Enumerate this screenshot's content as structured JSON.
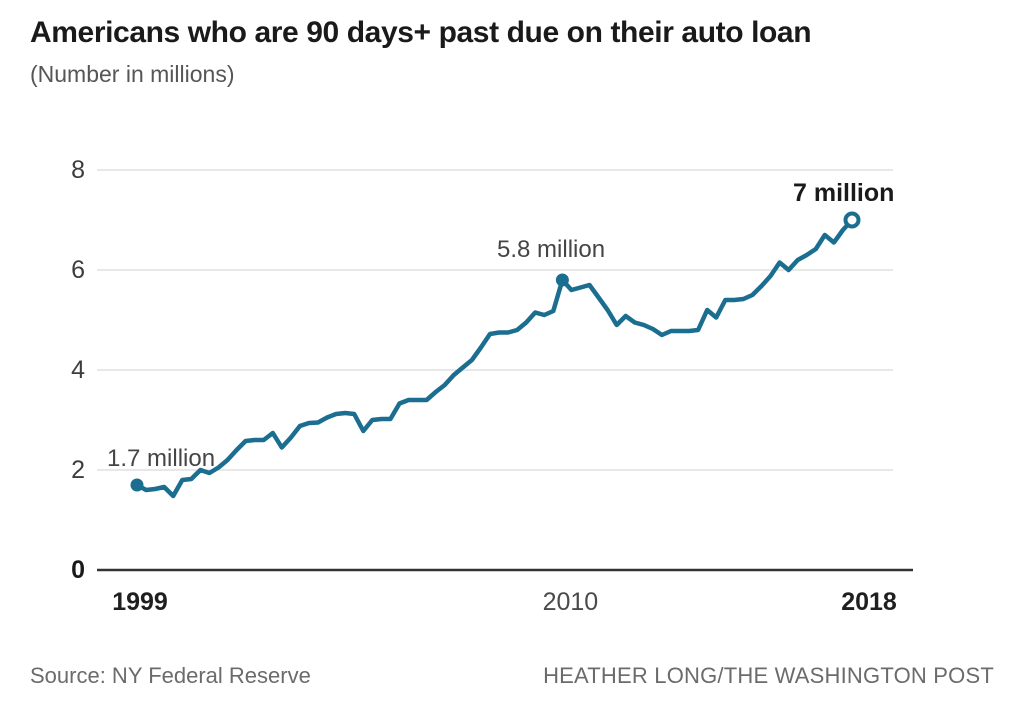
{
  "header": {
    "title": "Americans who are 90 days+ past due on their auto loan",
    "subtitle": "(Number in millions)"
  },
  "footer": {
    "source": "Source: NY Federal Reserve",
    "credit": "HEATHER LONG/THE WASHINGTON POST"
  },
  "colors": {
    "line": "#1b6e8f",
    "grid": "#d9d9d9",
    "baseline": "#333333",
    "tick_text": "#3d3d3d",
    "tick_text_bold": "#1a1a1a",
    "background": "#ffffff"
  },
  "chart_data": {
    "type": "line",
    "title": "Americans who are 90 days+ past due on their auto loan",
    "subtitle": "(Number in millions)",
    "x_start_year": 1999,
    "x_end_year": 2018,
    "frequency": "quarterly",
    "xlabel": "",
    "ylabel": "Number in millions",
    "ylim": [
      0,
      8
    ],
    "y_ticks": [
      0,
      2,
      4,
      6,
      8
    ],
    "grid": "horizontal",
    "legend": "none",
    "x_ticks": [
      {
        "label": "1999",
        "index": 0,
        "bold": true
      },
      {
        "label": "2010",
        "index": 47,
        "bold": false
      },
      {
        "label": "2018",
        "index": 79,
        "bold": true
      }
    ],
    "values": [
      1.7,
      1.6,
      1.62,
      1.66,
      1.48,
      1.8,
      1.82,
      2.0,
      1.94,
      2.05,
      2.2,
      2.4,
      2.58,
      2.6,
      2.6,
      2.74,
      2.45,
      2.65,
      2.88,
      2.94,
      2.95,
      3.05,
      3.12,
      3.14,
      3.12,
      2.78,
      3.0,
      3.02,
      3.02,
      3.33,
      3.4,
      3.4,
      3.4,
      3.56,
      3.7,
      3.9,
      4.05,
      4.2,
      4.45,
      4.72,
      4.75,
      4.75,
      4.8,
      4.95,
      5.15,
      5.1,
      5.18,
      5.8,
      5.6,
      5.65,
      5.7,
      5.45,
      5.2,
      4.9,
      5.08,
      4.95,
      4.9,
      4.82,
      4.7,
      4.78,
      4.78,
      4.78,
      4.8,
      5.2,
      5.05,
      5.4,
      5.4,
      5.42,
      5.5,
      5.68,
      5.88,
      6.15,
      6.0,
      6.2,
      6.3,
      6.42,
      6.7,
      6.55,
      6.8,
      7.0
    ],
    "annotations": [
      {
        "label": "1.7 million",
        "index": 0,
        "value": 1.7,
        "marker": "filled-dot",
        "bold": false
      },
      {
        "label": "5.8 million",
        "index": 47,
        "value": 5.8,
        "marker": "filled-dot",
        "bold": false
      },
      {
        "label": "7 million",
        "index": 79,
        "value": 7.0,
        "marker": "open-dot",
        "bold": true
      }
    ]
  }
}
